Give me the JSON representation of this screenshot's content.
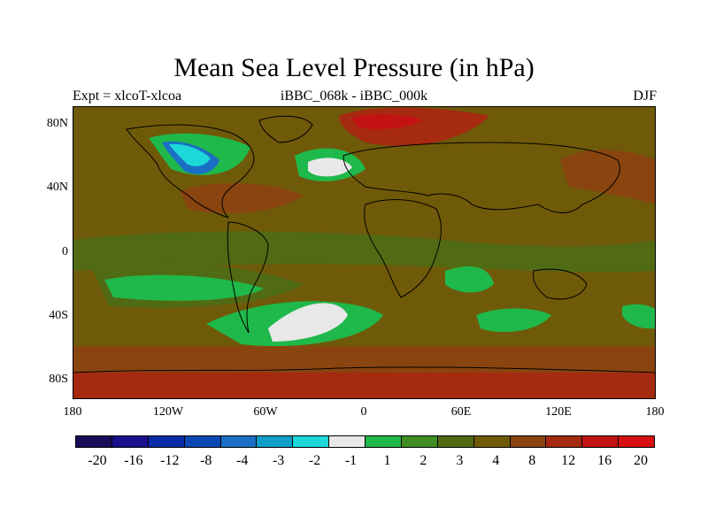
{
  "figure": {
    "title": "Mean Sea Level Pressure (in hPa)",
    "left_subtitle": "Expt = xlcoT-xlcoa",
    "center_subtitle": "iBBC_068k - iBBC_000k",
    "right_subtitle": "DJF"
  },
  "axes": {
    "lat_ticks": [
      "80N",
      "40N",
      "0",
      "40S",
      "80S"
    ],
    "lon_ticks": [
      "180",
      "120W",
      "60W",
      "0",
      "60E",
      "120E",
      "180"
    ]
  },
  "colorbar": {
    "colors": [
      "#190a5a",
      "#1a0f8c",
      "#0a2ca8",
      "#0a47b4",
      "#1a6fc4",
      "#0d9fc8",
      "#1cd8d8",
      "#e8e8e8",
      "#1fb84a",
      "#3e8e22",
      "#516a14",
      "#6f5a0a",
      "#8a4410",
      "#a62a10",
      "#c21212",
      "#d61010"
    ],
    "labels": [
      "-20",
      "-16",
      "-12",
      "-8",
      "-4",
      "-3",
      "-2",
      "-1",
      "1",
      "2",
      "3",
      "4",
      "8",
      "12",
      "16",
      "20"
    ]
  },
  "map_colors": {
    "background": "#6f5a0a",
    "level_3": "#516a14",
    "level_2": "#3e8e22",
    "level_1": "#1fb84a",
    "near_zero": "#e8e8e8",
    "level_8": "#8a4410",
    "level_12": "#a62a10",
    "level_16": "#c21212",
    "neg_level": "#1a6fc4",
    "neg_light": "#1cd8d8",
    "coast": "#000000"
  }
}
